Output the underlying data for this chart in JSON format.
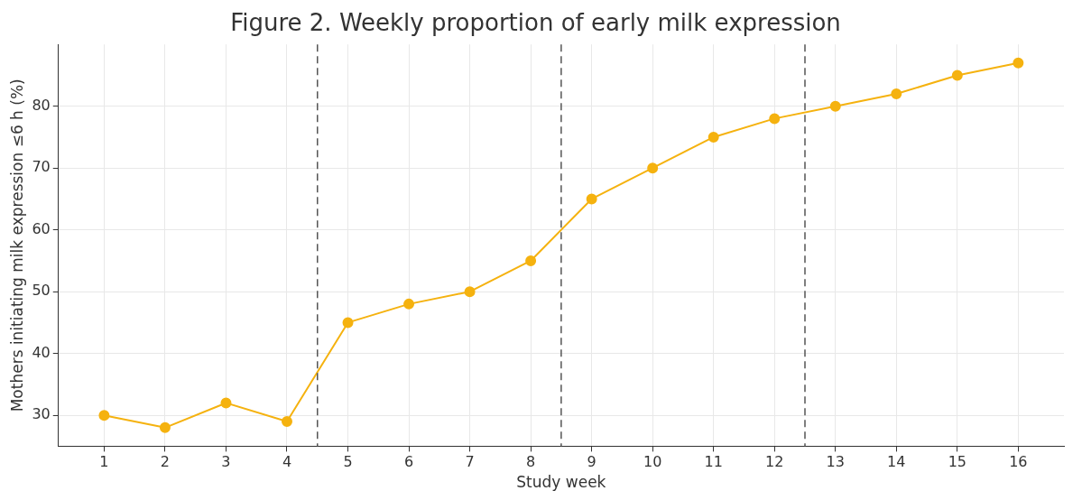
{
  "chart_data": {
    "type": "line",
    "title": "Figure 2. Weekly proportion of early milk expression",
    "xlabel": "Study week",
    "ylabel": "Mothers initiating milk expression ≤6 h (%)",
    "x": [
      1,
      2,
      3,
      4,
      5,
      6,
      7,
      8,
      9,
      10,
      11,
      12,
      13,
      14,
      15,
      16
    ],
    "series": [
      {
        "color": "#f5b20f",
        "values": [
          30,
          28,
          32,
          29,
          45,
          48,
          50,
          55,
          65,
          70,
          75,
          78,
          80,
          82,
          85,
          87
        ]
      }
    ],
    "xlim": [
      0.25,
      16.75
    ],
    "xticks": [
      1,
      2,
      3,
      4,
      5,
      6,
      7,
      8,
      9,
      10,
      11,
      12,
      13,
      14,
      15,
      16
    ],
    "ylim": [
      25,
      90
    ],
    "yticks": [
      30,
      40,
      50,
      60,
      70,
      80
    ],
    "ref_lines": [
      {
        "axis": "x",
        "value": 4.5,
        "color": "#555555",
        "line_style": "dashed"
      },
      {
        "axis": "x",
        "value": 8.5,
        "color": "#555555",
        "line_style": "dashed"
      },
      {
        "axis": "x",
        "value": 12.5,
        "color": "#555555",
        "line_style": "dashed"
      }
    ],
    "grid": true,
    "legend": false,
    "marker": "circle",
    "line_style": "solid"
  }
}
